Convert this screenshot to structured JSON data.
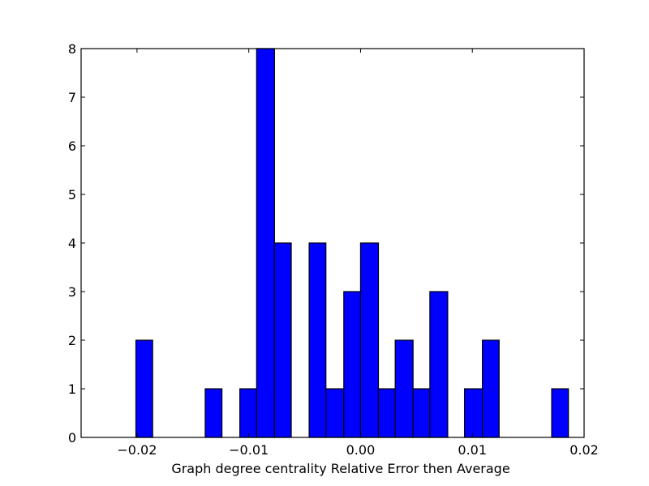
{
  "chart_data": {
    "type": "bar",
    "histogram": true,
    "title": "",
    "xlabel": "Graph degree centrality Relative Error then Average",
    "ylabel": "",
    "xlim": [
      -0.025,
      0.02
    ],
    "ylim": [
      0,
      8
    ],
    "bin_width": 0.00155,
    "bins": [
      {
        "x0": -0.0201,
        "x1": -0.0186,
        "count": 2
      },
      {
        "x0": -0.0139,
        "x1": -0.0124,
        "count": 1
      },
      {
        "x0": -0.0108,
        "x1": -0.0093,
        "count": 1
      },
      {
        "x0": -0.0093,
        "x1": -0.0077,
        "count": 8
      },
      {
        "x0": -0.0077,
        "x1": -0.0062,
        "count": 4
      },
      {
        "x0": -0.0046,
        "x1": -0.0031,
        "count": 4
      },
      {
        "x0": -0.0031,
        "x1": -0.0015,
        "count": 1
      },
      {
        "x0": -0.0015,
        "x1": 0.0,
        "count": 3
      },
      {
        "x0": 0.0,
        "x1": 0.0016,
        "count": 4
      },
      {
        "x0": 0.0016,
        "x1": 0.0031,
        "count": 1
      },
      {
        "x0": 0.0031,
        "x1": 0.0047,
        "count": 2
      },
      {
        "x0": 0.0047,
        "x1": 0.0062,
        "count": 1
      },
      {
        "x0": 0.0062,
        "x1": 0.0078,
        "count": 3
      },
      {
        "x0": 0.0093,
        "x1": 0.0109,
        "count": 1
      },
      {
        "x0": 0.0109,
        "x1": 0.0124,
        "count": 2
      },
      {
        "x0": 0.0171,
        "x1": 0.0186,
        "count": 1
      }
    ],
    "x_ticks": [
      {
        "value": -0.02,
        "label": "−0.02"
      },
      {
        "value": -0.01,
        "label": "−0.01"
      },
      {
        "value": 0.0,
        "label": "0.00"
      },
      {
        "value": 0.01,
        "label": "0.01"
      },
      {
        "value": 0.02,
        "label": "0.02"
      }
    ],
    "y_ticks": [
      {
        "value": 0,
        "label": "0"
      },
      {
        "value": 1,
        "label": "1"
      },
      {
        "value": 2,
        "label": "2"
      },
      {
        "value": 3,
        "label": "3"
      },
      {
        "value": 4,
        "label": "4"
      },
      {
        "value": 5,
        "label": "5"
      },
      {
        "value": 6,
        "label": "6"
      },
      {
        "value": 7,
        "label": "7"
      },
      {
        "value": 8,
        "label": "8"
      }
    ],
    "grid": false,
    "bar_color": "#0000ff",
    "edge_color": "#000000"
  }
}
